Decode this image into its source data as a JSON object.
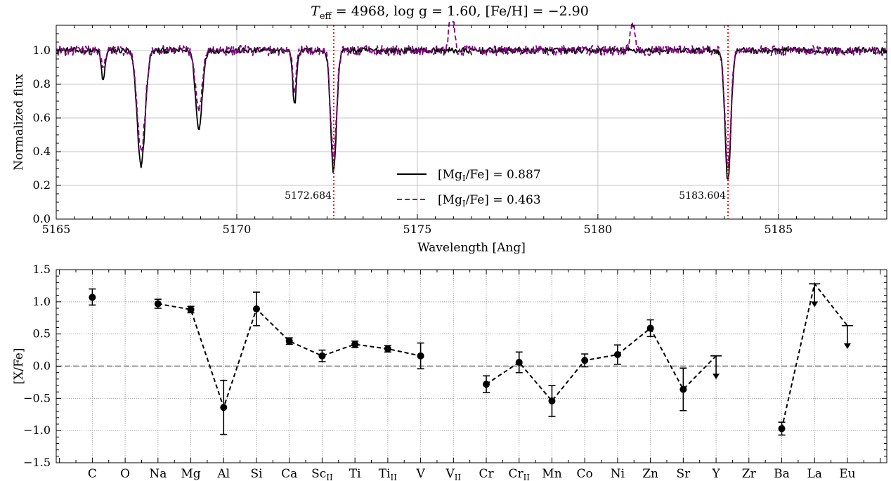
{
  "chart_data": [
    {
      "type": "line",
      "title": "T_eff = 4968, log g = 1.60, [Fe/H] = −2.90",
      "title_parts": {
        "teff_label": "T",
        "teff_sub": "eff",
        "rest": " = 4968, log g = 1.60, [Fe/H] = −2.90"
      },
      "xlabel": "Wavelength [Ang]",
      "ylabel": "Normalized flux",
      "xlim": [
        5165,
        5188
      ],
      "ylim": [
        0.0,
        1.15
      ],
      "xticks": [
        5165,
        5170,
        5175,
        5180,
        5185
      ],
      "yticks": [
        0.0,
        0.2,
        0.4,
        0.6,
        0.8,
        1.0
      ],
      "ytick_labels": [
        "0.0",
        "0.2",
        "0.4",
        "0.6",
        "0.8",
        "1.0"
      ],
      "grid": true,
      "legend_position": "lower-center",
      "continuum": 1.0,
      "absorption_lines": [
        {
          "center": 5166.3,
          "width": 0.05,
          "depth": [
            0.18,
            0.12
          ]
        },
        {
          "center": 5167.35,
          "width": 0.11,
          "depth": [
            0.68,
            0.6
          ]
        },
        {
          "center": 5168.95,
          "width": 0.09,
          "depth": [
            0.47,
            0.35
          ]
        },
        {
          "center": 5171.6,
          "width": 0.05,
          "depth": [
            0.32,
            0.24
          ]
        },
        {
          "center": 5172.68,
          "width": 0.08,
          "depth": [
            0.72,
            0.64
          ]
        },
        {
          "center": 5183.6,
          "width": 0.08,
          "depth": [
            0.77,
            0.68
          ]
        }
      ],
      "emission_features": [
        {
          "series": 1,
          "center": 5175.95,
          "width": 0.06,
          "height": 0.35
        },
        {
          "series": 1,
          "center": 5180.95,
          "width": 0.06,
          "height": 0.18
        }
      ],
      "series": [
        {
          "name": "[Mg_I/Fe] = 0.887",
          "label_main": "[Mg",
          "label_sub": "I",
          "label_rest": "/Fe] = 0.887",
          "color": "#000000",
          "style": "solid"
        },
        {
          "name": "[Mg_I/Fe] = 0.463",
          "label_main": "[Mg",
          "label_sub": "I",
          "label_rest": "/Fe] = 0.463",
          "color": "#800080",
          "style": "dashed"
        }
      ],
      "marked_lines": [
        {
          "x": 5172.684,
          "label": "5172.684",
          "color": "#ff0000"
        },
        {
          "x": 5183.604,
          "label": "5183.604",
          "color": "#ff0000"
        }
      ]
    },
    {
      "type": "scatter",
      "ylabel": "[X/Fe]",
      "ylim": [
        -1.5,
        1.5
      ],
      "yticks": [
        -1.5,
        -1.0,
        -0.5,
        0.0,
        0.5,
        1.0,
        1.5
      ],
      "ytick_labels": [
        "−1.5",
        "−1.0",
        "−0.5",
        "0.0",
        "0.5",
        "1.0",
        "1.5"
      ],
      "reference_line": 0.0,
      "grid": true,
      "categories": [
        {
          "main": "C",
          "sub": ""
        },
        {
          "main": "O",
          "sub": ""
        },
        {
          "main": "Na",
          "sub": ""
        },
        {
          "main": "Mg",
          "sub": ""
        },
        {
          "main": "Al",
          "sub": ""
        },
        {
          "main": "Si",
          "sub": ""
        },
        {
          "main": "Ca",
          "sub": ""
        },
        {
          "main": "Sc",
          "sub": "II"
        },
        {
          "main": "Ti",
          "sub": ""
        },
        {
          "main": "Ti",
          "sub": "II"
        },
        {
          "main": "V",
          "sub": ""
        },
        {
          "main": "V",
          "sub": "II"
        },
        {
          "main": "Cr",
          "sub": ""
        },
        {
          "main": "Cr",
          "sub": "II"
        },
        {
          "main": "Mn",
          "sub": ""
        },
        {
          "main": "Co",
          "sub": ""
        },
        {
          "main": "Ni",
          "sub": ""
        },
        {
          "main": "Zn",
          "sub": ""
        },
        {
          "main": "Sr",
          "sub": ""
        },
        {
          "main": "Y",
          "sub": ""
        },
        {
          "main": "Zr",
          "sub": ""
        },
        {
          "main": "Ba",
          "sub": ""
        },
        {
          "main": "La",
          "sub": ""
        },
        {
          "main": "Eu",
          "sub": ""
        }
      ],
      "points": [
        {
          "element": "C",
          "value": 1.07,
          "err_low": 0.12,
          "err_high": 0.13
        },
        {
          "element": "Na",
          "value": 0.97,
          "err_low": 0.07,
          "err_high": 0.07
        },
        {
          "element": "Mg",
          "value": 0.88,
          "err_low": 0.05,
          "err_high": 0.05
        },
        {
          "element": "Al",
          "value": -0.64,
          "err_low": 0.42,
          "err_high": 0.42
        },
        {
          "element": "Si",
          "value": 0.89,
          "err_low": 0.26,
          "err_high": 0.26
        },
        {
          "element": "Ca",
          "value": 0.39,
          "err_low": 0.05,
          "err_high": 0.05
        },
        {
          "element": "ScII",
          "value": 0.16,
          "err_low": 0.09,
          "err_high": 0.09
        },
        {
          "element": "Ti",
          "value": 0.34,
          "err_low": 0.05,
          "err_high": 0.05
        },
        {
          "element": "TiII",
          "value": 0.27,
          "err_low": 0.05,
          "err_high": 0.05
        },
        {
          "element": "V",
          "value": 0.16,
          "err_low": 0.2,
          "err_high": 0.2
        },
        {
          "element": "Cr",
          "value": -0.28,
          "err_low": 0.13,
          "err_high": 0.13
        },
        {
          "element": "CrII",
          "value": 0.06,
          "err_low": 0.16,
          "err_high": 0.16
        },
        {
          "element": "Mn",
          "value": -0.54,
          "err_low": 0.24,
          "err_high": 0.24
        },
        {
          "element": "Co",
          "value": 0.09,
          "err_low": 0.1,
          "err_high": 0.1
        },
        {
          "element": "Ni",
          "value": 0.18,
          "err_low": 0.15,
          "err_high": 0.15
        },
        {
          "element": "Zn",
          "value": 0.59,
          "err_low": 0.13,
          "err_high": 0.13
        },
        {
          "element": "Sr",
          "value": -0.36,
          "err_low": 0.33,
          "err_high": 0.33
        },
        {
          "element": "Ba",
          "value": -0.97,
          "err_low": 0.1,
          "err_high": 0.1
        }
      ],
      "upper_limits": [
        {
          "element": "Y",
          "value": 0.16
        },
        {
          "element": "La",
          "value": 1.28
        },
        {
          "element": "Eu",
          "value": 0.63
        }
      ],
      "connections": [
        [
          "Na",
          "Mg",
          "Al",
          "Si",
          "Ca",
          "ScII",
          "Ti",
          "TiII",
          "V"
        ],
        [
          "Cr",
          "CrII",
          "Mn",
          "Co",
          "Ni",
          "Zn",
          "Sr",
          "Y"
        ],
        [
          "Ba",
          "La",
          "Eu"
        ]
      ]
    }
  ]
}
